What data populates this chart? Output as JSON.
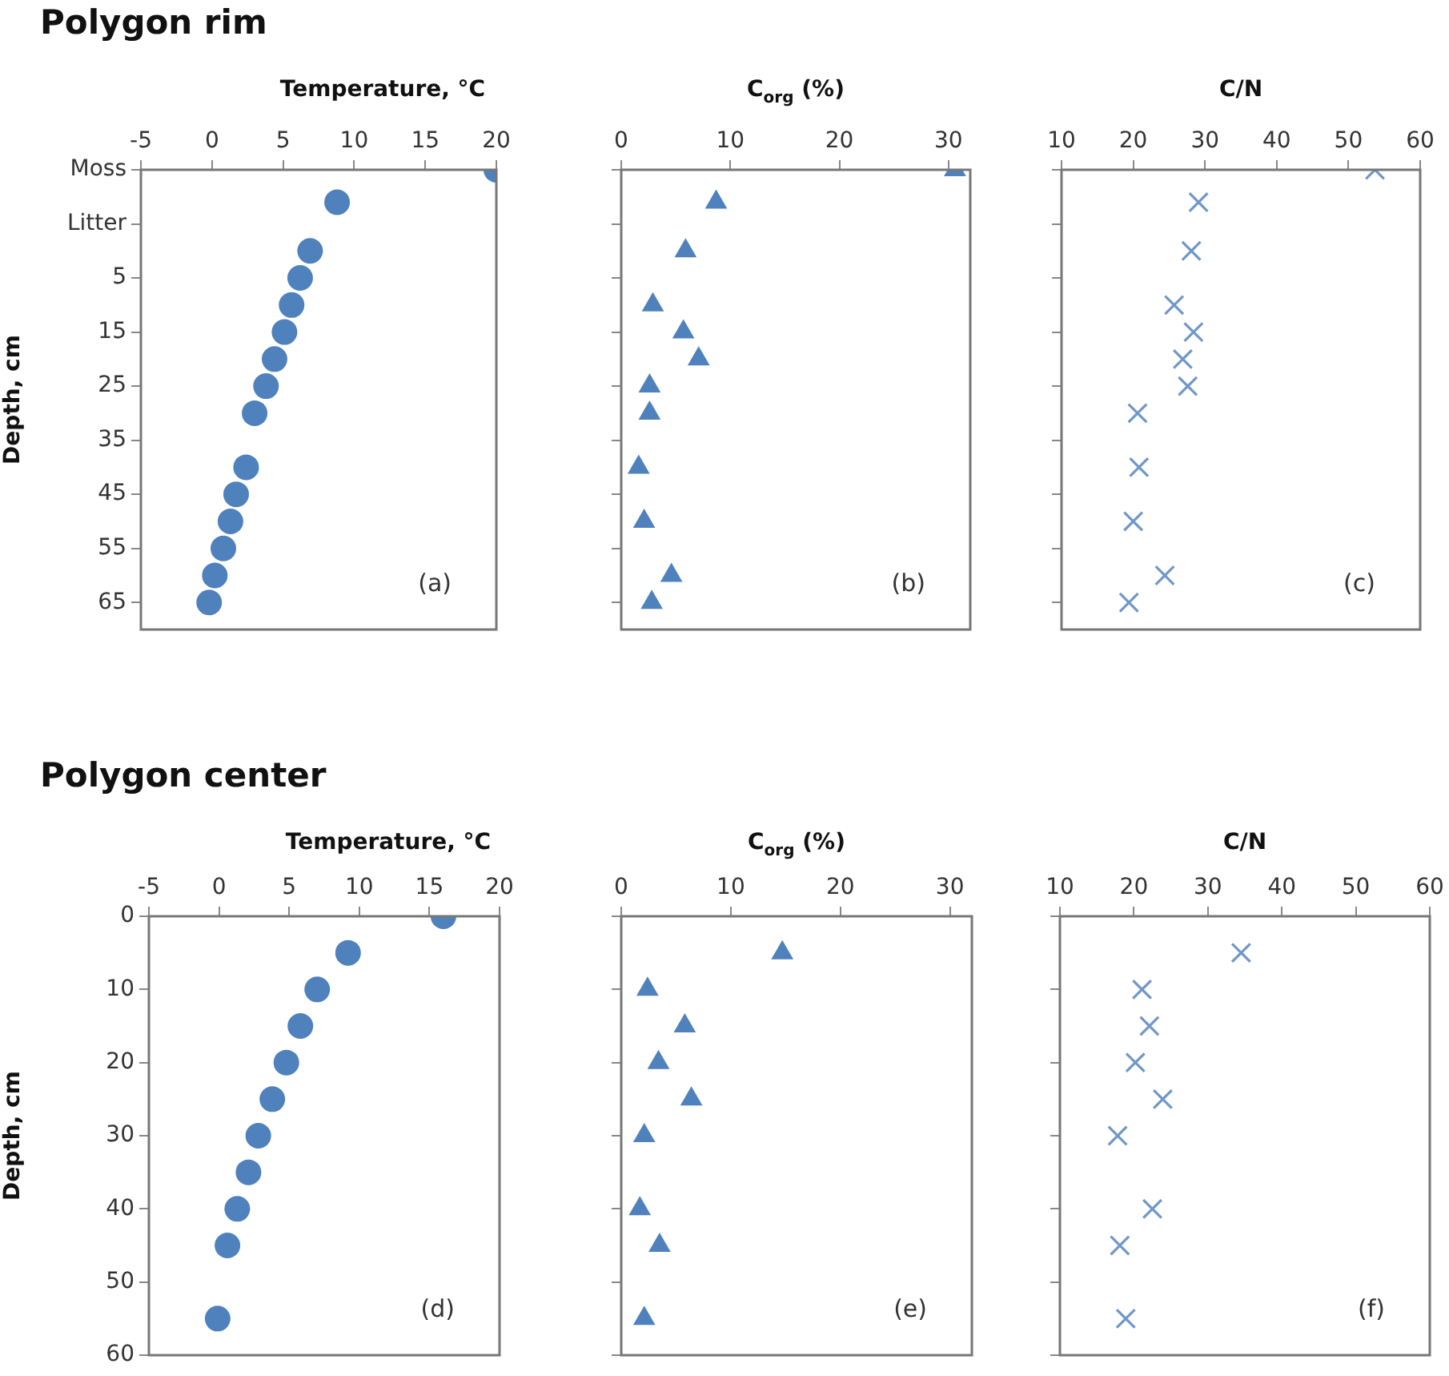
{
  "chart_data": [
    {
      "type": "scatter",
      "title": "Polygon rim",
      "xlabel": "Temperature, °C",
      "ylabel": "Depth, cm",
      "xlim": [
        -5,
        20
      ],
      "xticks": [
        -5,
        0,
        5,
        10,
        15,
        20
      ],
      "ylim": [
        70,
        -15
      ],
      "yticks": [
        {
          "value": -15,
          "label": "Moss"
        },
        {
          "value": -5,
          "label": "Litter"
        },
        5,
        15,
        25,
        35,
        45,
        55,
        65
      ],
      "marker": "circle",
      "annotations": [
        "(a)"
      ],
      "series": [
        {
          "color": "#4f81bd",
          "x": [
            20,
            8.8,
            6.9,
            6.2,
            5.6,
            5.1,
            4.4,
            3.8,
            3.0,
            2.4,
            1.7,
            1.3,
            0.8,
            0.2,
            -0.2
          ],
          "values": [
            -15,
            -9,
            0,
            5,
            10,
            15,
            20,
            25,
            30,
            40,
            45,
            50,
            55,
            60,
            65
          ]
        }
      ]
    },
    {
      "type": "scatter",
      "xlabel": "C$_{org}$ (%)",
      "xlim": [
        0,
        32
      ],
      "xticks": [
        0,
        10,
        20,
        30
      ],
      "ylim": [
        70,
        -15
      ],
      "yticks": [
        -15,
        -5,
        5,
        15,
        25,
        35,
        45,
        55,
        65
      ],
      "tick_labels": "x",
      "marker": "triangle",
      "annotations": [
        "(b)"
      ],
      "series": [
        {
          "color": "#4f81bd",
          "x": [
            30.6,
            8.7,
            5.9,
            2.9,
            5.7,
            7.1,
            2.6,
            2.6,
            1.6,
            2.1,
            4.6,
            2.8
          ],
          "values": [
            -15,
            -9,
            0,
            10,
            15,
            20,
            25,
            30,
            40,
            50,
            60,
            65
          ]
        }
      ]
    },
    {
      "type": "scatter",
      "xlabel": "C/N",
      "xlim": [
        10,
        60
      ],
      "xticks": [
        10,
        20,
        30,
        40,
        50,
        60
      ],
      "ylim": [
        70,
        -15
      ],
      "yticks": [
        -15,
        -5,
        5,
        15,
        25,
        35,
        45,
        55,
        65
      ],
      "tick_labels": "x",
      "marker": "cross",
      "annotations": [
        "(c)"
      ],
      "series": [
        {
          "color": "#6f97c9",
          "x": [
            53.7,
            29.1,
            28.1,
            25.7,
            28.4,
            26.9,
            27.6,
            20.6,
            20.8,
            20.0,
            24.4,
            19.4
          ],
          "values": [
            -15,
            -9,
            0,
            10,
            15,
            20,
            25,
            30,
            40,
            50,
            60,
            65
          ]
        }
      ]
    },
    {
      "type": "scatter",
      "title": "Polygon center",
      "xlabel": "Temperature, °C",
      "ylabel": "Depth, cm",
      "xlim": [
        -5,
        20
      ],
      "xticks": [
        -5,
        0,
        5,
        10,
        15,
        20
      ],
      "ylim": [
        60,
        0
      ],
      "yticks": [
        0,
        10,
        20,
        30,
        40,
        50,
        60
      ],
      "marker": "circle",
      "annotations": [
        "(d)"
      ],
      "series": [
        {
          "color": "#4f81bd",
          "x": [
            16.0,
            9.2,
            7.0,
            5.8,
            4.8,
            3.8,
            2.8,
            2.1,
            1.3,
            0.6,
            -0.1
          ],
          "values": [
            0,
            5,
            10,
            15,
            20,
            25,
            30,
            35,
            40,
            45,
            55
          ]
        }
      ]
    },
    {
      "type": "scatter",
      "xlabel": "C$_{org}$ (%)",
      "xlim": [
        0,
        32
      ],
      "xticks": [
        0,
        10,
        20,
        30
      ],
      "ylim": [
        60,
        0
      ],
      "yticks": [
        0,
        10,
        20,
        30,
        40,
        50,
        60
      ],
      "tick_labels": "x",
      "marker": "triangle",
      "annotations": [
        "(e)"
      ],
      "series": [
        {
          "color": "#4f81bd",
          "x": [
            14.7,
            2.4,
            5.8,
            3.4,
            6.4,
            2.1,
            1.7,
            3.5,
            2.1
          ],
          "values": [
            5,
            10,
            15,
            20,
            25,
            30,
            40,
            45,
            55
          ]
        }
      ]
    },
    {
      "type": "scatter",
      "xlabel": "C/N",
      "xlim": [
        10,
        60
      ],
      "xticks": [
        10,
        20,
        30,
        40,
        50,
        60
      ],
      "ylim": [
        60,
        0
      ],
      "yticks": [
        0,
        10,
        20,
        30,
        40,
        50,
        60
      ],
      "tick_labels": "x",
      "marker": "cross",
      "annotations": [
        "(f)"
      ],
      "series": [
        {
          "color": "#6f97c9",
          "x": [
            34.5,
            21.1,
            22.1,
            20.2,
            23.9,
            17.8,
            22.5,
            18.1,
            18.9
          ],
          "values": [
            5,
            10,
            15,
            20,
            25,
            30,
            40,
            45,
            55
          ]
        }
      ]
    }
  ]
}
